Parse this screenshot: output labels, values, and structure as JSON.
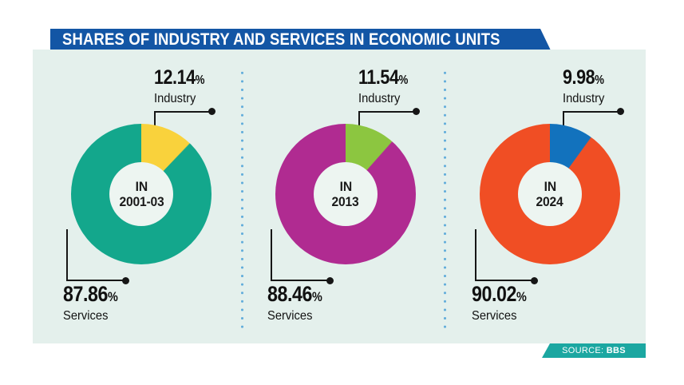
{
  "title": "SHARES OF INDUSTRY AND SERVICES IN ECONOMIC UNITS",
  "percent_sign": "%",
  "source": {
    "prefix": "SOURCE: ",
    "value": "BBS"
  },
  "colors": {
    "banner_blue": "#1356A5",
    "panel_bg": "#E4F0EC",
    "hole_bg": "#EDF5F1",
    "source_teal": "#1BA7A1",
    "dot_blue": "#64AEDB",
    "line_black": "#161616"
  },
  "chart_data": [
    {
      "type": "pie",
      "title": "IN 2001-03",
      "center": {
        "line1": "IN",
        "line2": "2001-03"
      },
      "slices": [
        {
          "label": "Industry",
          "value": 12.14,
          "display": "12.14",
          "color": "#F9D23C"
        },
        {
          "label": "Services",
          "value": 87.86,
          "display": "87.86",
          "color": "#13A78C"
        }
      ],
      "start_angle_deg": 0,
      "direction": "clockwise",
      "donut_hole_ratio": 0.45
    },
    {
      "type": "pie",
      "title": "IN 2013",
      "center": {
        "line1": "IN",
        "line2": "2013"
      },
      "slices": [
        {
          "label": "Industry",
          "value": 11.54,
          "display": "11.54",
          "color": "#8CC640"
        },
        {
          "label": "Services",
          "value": 88.46,
          "display": "88.46",
          "color": "#B02B91"
        }
      ],
      "start_angle_deg": 0,
      "direction": "clockwise",
      "donut_hole_ratio": 0.45
    },
    {
      "type": "pie",
      "title": "IN 2024",
      "center": {
        "line1": "IN",
        "line2": "2024"
      },
      "slices": [
        {
          "label": "Industry",
          "value": 9.98,
          "display": "9.98",
          "color": "#1272BD"
        },
        {
          "label": "Services",
          "value": 90.02,
          "display": "90.02",
          "color": "#F04E24"
        }
      ],
      "start_angle_deg": 0,
      "direction": "clockwise",
      "donut_hole_ratio": 0.45
    }
  ]
}
